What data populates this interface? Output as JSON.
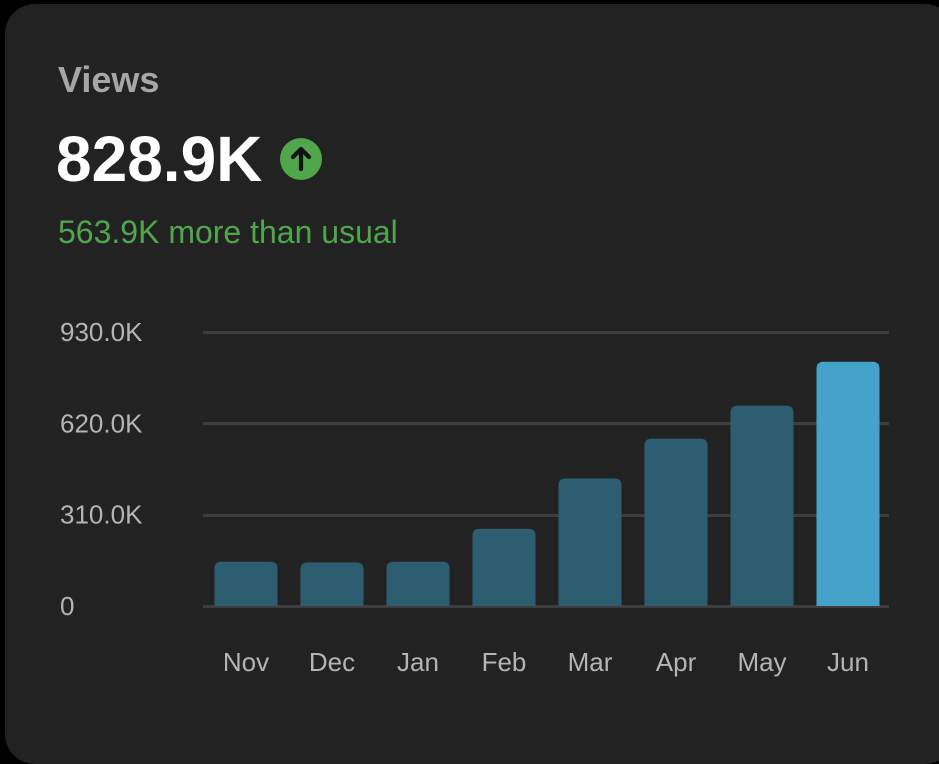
{
  "header": {
    "title": "Views",
    "value": "828.9K",
    "trend_icon": "arrow-up-circle-icon",
    "subtitle": "563.9K more than usual"
  },
  "colors": {
    "background": "#222222",
    "bar": "#2c5d70",
    "bar_highlight": "#45a2c9",
    "gridline": "#3d3d3d",
    "positive": "#4fa64b"
  },
  "chart_data": {
    "type": "bar",
    "title": "Views",
    "xlabel": "",
    "ylabel": "",
    "categories": [
      "Nov",
      "Dec",
      "Jan",
      "Feb",
      "Mar",
      "Apr",
      "May",
      "Jun"
    ],
    "values": [
      150,
      148,
      150,
      262,
      433,
      568,
      680,
      828.9
    ],
    "value_unit": "K",
    "highlight_index": 7,
    "ylim": [
      0,
      930
    ],
    "y_ticks": [
      0,
      310,
      620,
      930
    ],
    "y_tick_labels": [
      "0",
      "310.0K",
      "620.0K",
      "930.0K"
    ],
    "grid": true,
    "legend": "none"
  }
}
